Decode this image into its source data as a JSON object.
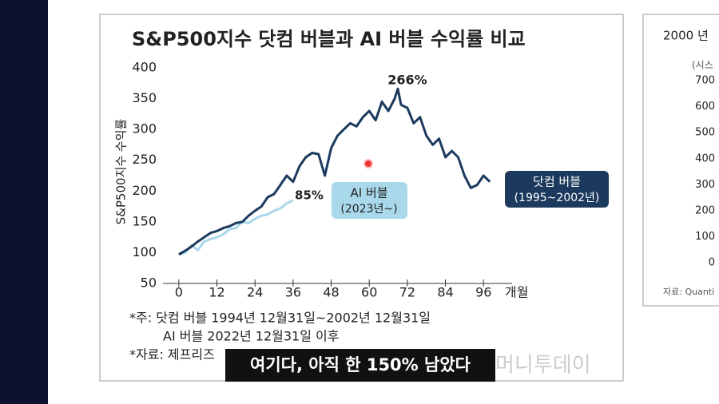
{
  "chart_data": {
    "type": "line",
    "title": "S&P500지수 닷컴 버블과 AI 버블 수익률 비교",
    "ylabel": "S&P500지수 수익률",
    "xlabel": "개월",
    "xlim": [
      -5,
      105
    ],
    "xticks": [
      0,
      12,
      24,
      36,
      48,
      60,
      72,
      84,
      96
    ],
    "ylim": [
      50,
      400
    ],
    "yticks": [
      50,
      100,
      150,
      200,
      250,
      300,
      350,
      400
    ],
    "series": [
      {
        "name": "닷컴 버블",
        "period": "(1995~2002년)",
        "color": "#1c3a5e",
        "x": [
          0,
          2,
          4,
          6,
          8,
          10,
          12,
          14,
          16,
          18,
          20,
          22,
          24,
          26,
          28,
          30,
          32,
          34,
          36,
          38,
          40,
          42,
          44,
          46,
          48,
          50,
          52,
          54,
          56,
          58,
          60,
          62,
          64,
          66,
          68,
          69,
          70,
          72,
          74,
          76,
          78,
          80,
          82,
          84,
          86,
          88,
          90,
          92,
          94,
          96,
          98
        ],
        "values": [
          97,
          103,
          110,
          118,
          125,
          132,
          135,
          140,
          143,
          148,
          150,
          160,
          168,
          175,
          190,
          195,
          210,
          225,
          215,
          240,
          255,
          262,
          260,
          225,
          270,
          290,
          300,
          310,
          305,
          320,
          330,
          315,
          345,
          330,
          350,
          366,
          340,
          335,
          310,
          320,
          290,
          275,
          285,
          255,
          265,
          255,
          225,
          205,
          210,
          225,
          215
        ]
      },
      {
        "name": "AI 버블",
        "period": "(2023년~)",
        "color": "#a8d8ea",
        "x": [
          0,
          2,
          4,
          6,
          8,
          10,
          12,
          14,
          16,
          18,
          20,
          22,
          24,
          26,
          28,
          30,
          32,
          34,
          36
        ],
        "values": [
          97,
          100,
          112,
          104,
          118,
          122,
          125,
          130,
          138,
          140,
          150,
          148,
          155,
          160,
          162,
          168,
          172,
          180,
          185
        ]
      }
    ],
    "annotations": [
      "266%",
      "85%"
    ],
    "notes": [
      "*주: 닷컴 버블 1994년 12월31일~2002년 12월31일",
      "AI 버블 2022년 12월31일 이후",
      "*자료: 제프리즈"
    ],
    "watermark": "머니투데이"
  },
  "caption": "여기다, 아직 한 150% 남았다",
  "side_panel": {
    "title": "2000 년",
    "unit": "(시스",
    "ticks": [
      700,
      600,
      500,
      400,
      300,
      200,
      100,
      0
    ],
    "source": "자료: Quanti"
  }
}
